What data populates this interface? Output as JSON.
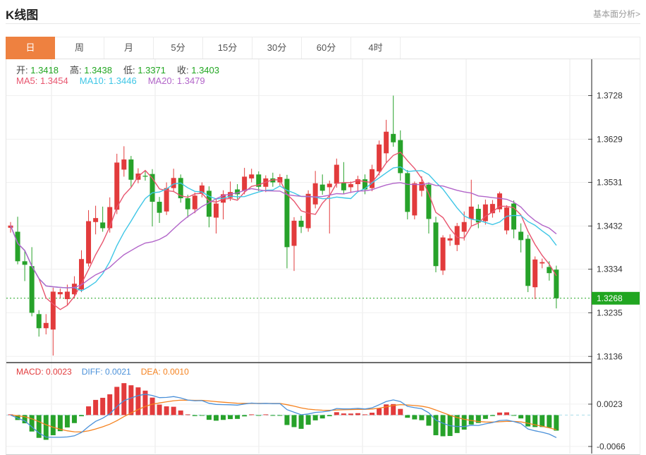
{
  "header": {
    "title": "K线图",
    "link": "基本面分析>"
  },
  "tabs": {
    "items": [
      "日",
      "周",
      "月",
      "5分",
      "15分",
      "30分",
      "60分",
      "4时"
    ],
    "selected_index": 0,
    "selected_bg": "#ee8140"
  },
  "info": {
    "ohlc": [
      {
        "label": "开",
        "value": "1.3418"
      },
      {
        "label": "高",
        "value": "1.3438"
      },
      {
        "label": "低",
        "value": "1.3371"
      },
      {
        "label": "收",
        "value": "1.3403"
      }
    ],
    "ohlc_value_color": "#21a621",
    "ma": [
      {
        "label": "MA5",
        "value": "1.3454",
        "color": "#e8546e"
      },
      {
        "label": "MA10",
        "value": "1.3446",
        "color": "#3ec6e6"
      },
      {
        "label": "MA20",
        "value": "1.3479",
        "color": "#b265c9"
      }
    ]
  },
  "macd_info": [
    {
      "label": "MACD",
      "value": "0.0023",
      "color": "#e23b3c"
    },
    {
      "label": "DIFF",
      "value": "0.0021",
      "color": "#4a90d9"
    },
    {
      "label": "DEA",
      "value": "0.0010",
      "color": "#f5821f"
    }
  ],
  "chart_data": {
    "type": "candlestick+macd",
    "main": {
      "title": "K线图 日线",
      "y_ticks": [
        1.3728,
        1.3629,
        1.3531,
        1.3432,
        1.3334,
        1.3235,
        1.3136
      ],
      "ylim": [
        1.3122,
        1.3732
      ],
      "last_price": 1.3268,
      "last_price_label": "1.3268",
      "ma_windows": [
        5,
        10,
        20
      ],
      "candles": [
        [
          1.3428,
          1.3441,
          1.3417,
          1.3433
        ],
        [
          1.3419,
          1.3453,
          1.3345,
          1.3352
        ],
        [
          1.3352,
          1.3376,
          1.3307,
          1.3344
        ],
        [
          1.3341,
          1.3384,
          1.3227,
          1.3235
        ],
        [
          1.3232,
          1.3241,
          1.3181,
          1.32
        ],
        [
          1.32,
          1.3232,
          1.3186,
          1.3212
        ],
        [
          1.3197,
          1.3292,
          1.3138,
          1.3283
        ],
        [
          1.3277,
          1.329,
          1.3268,
          1.3282
        ],
        [
          1.3266,
          1.3299,
          1.3251,
          1.3283
        ],
        [
          1.3277,
          1.3318,
          1.3269,
          1.3301
        ],
        [
          1.3288,
          1.3377,
          1.3282,
          1.3357
        ],
        [
          1.3347,
          1.3468,
          1.334,
          1.3443
        ],
        [
          1.3441,
          1.3478,
          1.3413,
          1.345
        ],
        [
          1.344,
          1.3476,
          1.3419,
          1.3427
        ],
        [
          1.3427,
          1.3497,
          1.3417,
          1.3475
        ],
        [
          1.3469,
          1.3596,
          1.3459,
          1.3576
        ],
        [
          1.356,
          1.3613,
          1.3544,
          1.3583
        ],
        [
          1.3583,
          1.3591,
          1.3521,
          1.3537
        ],
        [
          1.3537,
          1.3563,
          1.3529,
          1.3551
        ],
        [
          1.3546,
          1.3557,
          1.3535,
          1.3544
        ],
        [
          1.355,
          1.3561,
          1.3431,
          1.3487
        ],
        [
          1.3487,
          1.3498,
          1.3439,
          1.3462
        ],
        [
          1.3465,
          1.3531,
          1.3457,
          1.3518
        ],
        [
          1.3518,
          1.3562,
          1.3509,
          1.3541
        ],
        [
          1.3541,
          1.3549,
          1.3485,
          1.3495
        ],
        [
          1.3495,
          1.3503,
          1.3451,
          1.347
        ],
        [
          1.347,
          1.3508,
          1.3461,
          1.3501
        ],
        [
          1.3506,
          1.3531,
          1.3497,
          1.3524
        ],
        [
          1.3512,
          1.3522,
          1.3429,
          1.3453
        ],
        [
          1.3451,
          1.3493,
          1.3415,
          1.3483
        ],
        [
          1.3485,
          1.3513,
          1.3447,
          1.3504
        ],
        [
          1.3496,
          1.3533,
          1.3489,
          1.3509
        ],
        [
          1.3515,
          1.3527,
          1.3493,
          1.3504
        ],
        [
          1.3512,
          1.3564,
          1.3504,
          1.3544
        ],
        [
          1.354,
          1.3562,
          1.3531,
          1.3549
        ],
        [
          1.3549,
          1.3556,
          1.3511,
          1.3521
        ],
        [
          1.3521,
          1.3547,
          1.3509,
          1.354
        ],
        [
          1.354,
          1.3553,
          1.3521,
          1.3531
        ],
        [
          1.3531,
          1.355,
          1.3524,
          1.3543
        ],
        [
          1.3539,
          1.3548,
          1.3336,
          1.3384
        ],
        [
          1.3387,
          1.3452,
          1.333,
          1.3444
        ],
        [
          1.3444,
          1.3455,
          1.3416,
          1.343
        ],
        [
          1.3427,
          1.3513,
          1.3419,
          1.3505
        ],
        [
          1.3481,
          1.3557,
          1.3472,
          1.3529
        ],
        [
          1.3526,
          1.3549,
          1.3503,
          1.3512
        ],
        [
          1.352,
          1.3535,
          1.3415,
          1.3528
        ],
        [
          1.3528,
          1.3585,
          1.3519,
          1.3571
        ],
        [
          1.3531,
          1.3577,
          1.3504,
          1.3513
        ],
        [
          1.352,
          1.3533,
          1.3507,
          1.3527
        ],
        [
          1.3527,
          1.3546,
          1.3511,
          1.3538
        ],
        [
          1.3538,
          1.3549,
          1.3504,
          1.3515
        ],
        [
          1.3518,
          1.3571,
          1.3511,
          1.3561
        ],
        [
          1.3556,
          1.3626,
          1.3547,
          1.3617
        ],
        [
          1.3597,
          1.3673,
          1.3576,
          1.3646
        ],
        [
          1.3641,
          1.3728,
          1.3612,
          1.3622
        ],
        [
          1.3627,
          1.3649,
          1.3535,
          1.3552
        ],
        [
          1.3552,
          1.3559,
          1.3447,
          1.3464
        ],
        [
          1.3456,
          1.3533,
          1.3447,
          1.3529
        ],
        [
          1.3512,
          1.3545,
          1.3499,
          1.3532
        ],
        [
          1.3526,
          1.3531,
          1.3415,
          1.3448
        ],
        [
          1.344,
          1.3453,
          1.3327,
          1.3341
        ],
        [
          1.3331,
          1.3411,
          1.3321,
          1.3406
        ],
        [
          1.3399,
          1.3413,
          1.3387,
          1.3404
        ],
        [
          1.3389,
          1.3439,
          1.3375,
          1.3432
        ],
        [
          1.3419,
          1.3465,
          1.3399,
          1.3441
        ],
        [
          1.3448,
          1.3537,
          1.3431,
          1.3476
        ],
        [
          1.3471,
          1.3481,
          1.3427,
          1.344
        ],
        [
          1.3443,
          1.3492,
          1.3435,
          1.3481
        ],
        [
          1.3461,
          1.3491,
          1.3451,
          1.3482
        ],
        [
          1.347,
          1.351,
          1.3463,
          1.3506
        ],
        [
          1.3422,
          1.3479,
          1.3413,
          1.3474
        ],
        [
          1.3483,
          1.349,
          1.3404,
          1.3424
        ],
        [
          1.3419,
          1.3438,
          1.3372,
          1.34
        ],
        [
          1.3403,
          1.3412,
          1.3282,
          1.3296
        ],
        [
          1.3293,
          1.3363,
          1.3266,
          1.3356
        ],
        [
          1.3347,
          1.3358,
          1.3336,
          1.335
        ],
        [
          1.3339,
          1.3352,
          1.3308,
          1.3325
        ],
        [
          1.3333,
          1.3342,
          1.3245,
          1.3268
        ]
      ]
    },
    "macd": {
      "y_ticks": [
        0.0023,
        -0.0066
      ],
      "ylim": [
        -0.0081,
        0.0106
      ],
      "params": [
        12,
        26,
        9
      ]
    },
    "colors": {
      "up": "#e23b3c",
      "down": "#27a22a",
      "ma5": "#e8546e",
      "ma10": "#3ec6e6",
      "ma20": "#b265c9",
      "diff": "#4a90d9",
      "dea": "#f5821f",
      "grid": "#f0f0f0",
      "vgrid": "#e9e9e9",
      "axis": "#444444",
      "tick_text": "#333333",
      "last_line": "#21a621",
      "badge_bg": "#21a621",
      "badge_text": "#ffffff",
      "divider": "#3c3c3c",
      "zero_dash": "#a9dbe8"
    }
  }
}
